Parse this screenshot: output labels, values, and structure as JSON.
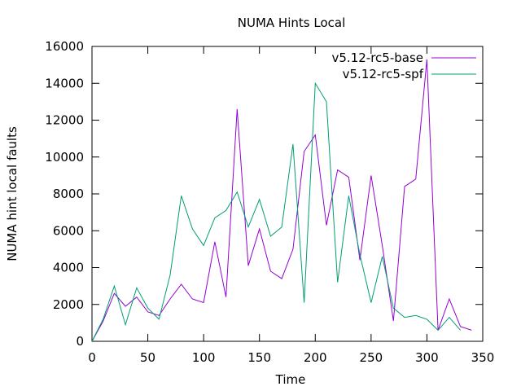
{
  "chart_data": {
    "type": "line",
    "title": "NUMA Hints Local",
    "xlabel": "Time",
    "ylabel": "NUMA hint local faults",
    "xlim": [
      0,
      350
    ],
    "ylim": [
      0,
      16000
    ],
    "xticks": [
      0,
      50,
      100,
      150,
      200,
      250,
      300,
      350
    ],
    "yticks": [
      0,
      2000,
      4000,
      6000,
      8000,
      10000,
      12000,
      14000,
      16000
    ],
    "grid": false,
    "legend_position": "top-right",
    "series": [
      {
        "name": "v5.12-rc5-base",
        "color": "#9400d3",
        "x": [
          0,
          10,
          20,
          30,
          40,
          50,
          60,
          70,
          80,
          90,
          100,
          110,
          120,
          130,
          140,
          150,
          160,
          170,
          180,
          190,
          200,
          210,
          220,
          230,
          240,
          250,
          260,
          270,
          280,
          290,
          300,
          310,
          320,
          330,
          340
        ],
        "y": [
          0,
          1100,
          2600,
          1900,
          2400,
          1600,
          1400,
          2300,
          3100,
          2300,
          2100,
          5400,
          2400,
          12600,
          4100,
          6100,
          3800,
          3400,
          5000,
          10300,
          11200,
          6300,
          9300,
          8900,
          4400,
          9000,
          5200,
          1100,
          8400,
          8800,
          15300,
          600,
          2300,
          800,
          600
        ]
      },
      {
        "name": "v5.12-rc5-spf",
        "color": "#009e73",
        "x": [
          0,
          10,
          20,
          30,
          40,
          50,
          60,
          70,
          80,
          90,
          100,
          110,
          120,
          130,
          140,
          150,
          160,
          170,
          180,
          190,
          200,
          210,
          220,
          230,
          240,
          250,
          260,
          270,
          280,
          290,
          300,
          310,
          320,
          330
        ],
        "y": [
          0,
          1200,
          3000,
          900,
          2900,
          1800,
          1200,
          3600,
          7900,
          6100,
          5200,
          6700,
          7100,
          8100,
          6200,
          7700,
          5700,
          6200,
          10700,
          2100,
          14000,
          13000,
          3200,
          7900,
          4700,
          2100,
          4600,
          1800,
          1300,
          1400,
          1200,
          600,
          1300,
          600
        ]
      }
    ]
  }
}
